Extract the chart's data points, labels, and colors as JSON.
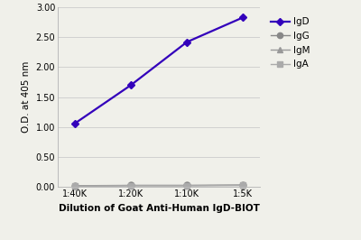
{
  "x_labels": [
    "1:40K",
    "1:20K",
    "1:10K",
    "1:5K"
  ],
  "x_values": [
    1,
    2,
    3,
    4
  ],
  "series_order": [
    "IgD",
    "IgG",
    "IgM",
    "IgA"
  ],
  "series": {
    "IgD": {
      "values": [
        1.06,
        1.7,
        2.42,
        2.83
      ],
      "color": "#3300bb",
      "marker": "D",
      "markersize": 4.5,
      "linewidth": 1.6
    },
    "IgG": {
      "values": [
        0.025,
        0.03,
        0.03,
        0.035
      ],
      "color": "#888888",
      "marker": "o",
      "markersize": 5,
      "linewidth": 1.0
    },
    "IgM": {
      "values": [
        0.02,
        0.028,
        0.028,
        0.032
      ],
      "color": "#999999",
      "marker": "^",
      "markersize": 5,
      "linewidth": 1.0
    },
    "IgA": {
      "values": [
        0.018,
        0.025,
        0.025,
        0.03
      ],
      "color": "#aaaaaa",
      "marker": "s",
      "markersize": 4.5,
      "linewidth": 1.0
    }
  },
  "ylabel": "O.D. at 405 nm",
  "xlabel": "Dilution of Goat Anti-Human IgD-BIOT",
  "ylim": [
    0.0,
    3.0
  ],
  "yticks": [
    0.0,
    0.5,
    1.0,
    1.5,
    2.0,
    2.5,
    3.0
  ],
  "ytick_labels": [
    "0.00",
    "0.50",
    "1.00",
    "1.50",
    "2.00",
    "2.50",
    "3.00"
  ],
  "background_color": "#f0f0ea",
  "plot_bg_color": "#f0f0ea",
  "grid_color": "#cccccc",
  "axis_fontsize": 7.5,
  "tick_fontsize": 7,
  "legend_fontsize": 7.5
}
